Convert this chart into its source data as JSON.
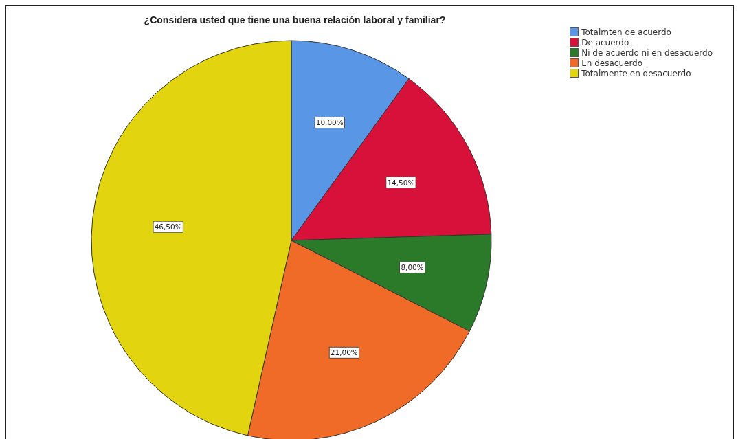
{
  "chart_data": {
    "type": "pie",
    "title": "¿Considera usted que tiene una buena relación laboral y familiar?",
    "categories": [
      "Totalmten de acuerdo",
      "De acuerdo",
      "Ni de acuerdo ni en desacuerdo",
      "En desacuerdo",
      "Totalmente en desacuerdo"
    ],
    "values": [
      10,
      14.5,
      8,
      21,
      46.5
    ],
    "value_labels": [
      "10,00%",
      "14,50%",
      "8,00%",
      "21,00%",
      "46,50%"
    ],
    "colors": [
      "#5a96e6",
      "#d7113a",
      "#2a7a2a",
      "#f06a28",
      "#e2d40e"
    ],
    "legend": "top right"
  }
}
